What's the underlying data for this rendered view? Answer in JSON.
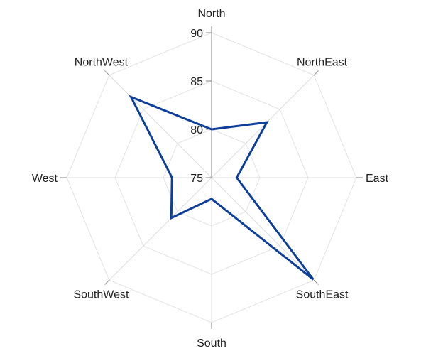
{
  "chart_data": {
    "type": "radar",
    "categories": [
      "North",
      "NorthEast",
      "East",
      "SouthEast",
      "South",
      "SouthWest",
      "West",
      "NorthWest"
    ],
    "series": [
      {
        "values": [
          80,
          83.1,
          77.6,
          89.9,
          77.2,
          80.9,
          79.1,
          86.8
        ]
      }
    ],
    "r_ticks": [
      75,
      80,
      85,
      90
    ],
    "rlim": [
      75,
      90
    ],
    "grid": true,
    "colors": {
      "series": "#0d3f9a",
      "grid": "#e2e2e2",
      "axis": "#9a9a9a"
    }
  }
}
